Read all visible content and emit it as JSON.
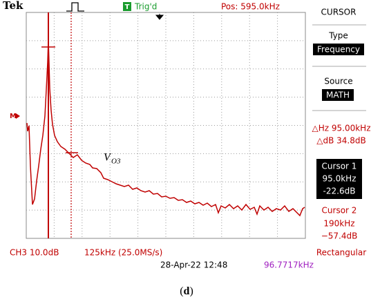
{
  "header": {
    "brand": "Tek",
    "trigger_badge": "T",
    "trigger_status": "Trig'd",
    "position": "Pos: 595.0kHz"
  },
  "side_panel": {
    "menu": "CURSOR",
    "type_label": "Type",
    "type_value": "Frequency",
    "source_label": "Source",
    "source_value": "MATH",
    "delta_hz": "△Hz 95.00kHz",
    "delta_db": "△dB 34.8dB",
    "cursor1": {
      "title": "Cursor 1",
      "freq": "95.0kHz",
      "level": "-22.6dB"
    },
    "cursor2": {
      "title": "Cursor 2",
      "freq": "190kHz",
      "level": "−57.4dB"
    },
    "window": "Rectangular"
  },
  "marker": "M",
  "annotation": {
    "main": "V",
    "sub": "O3"
  },
  "footer": {
    "channel": "CH3 10.0dB",
    "span": "125kHz (25.0MS/s)",
    "datetime": "28-Apr-22 12:48",
    "frequency": "96.7717kHz"
  },
  "caption": "(d)"
}
